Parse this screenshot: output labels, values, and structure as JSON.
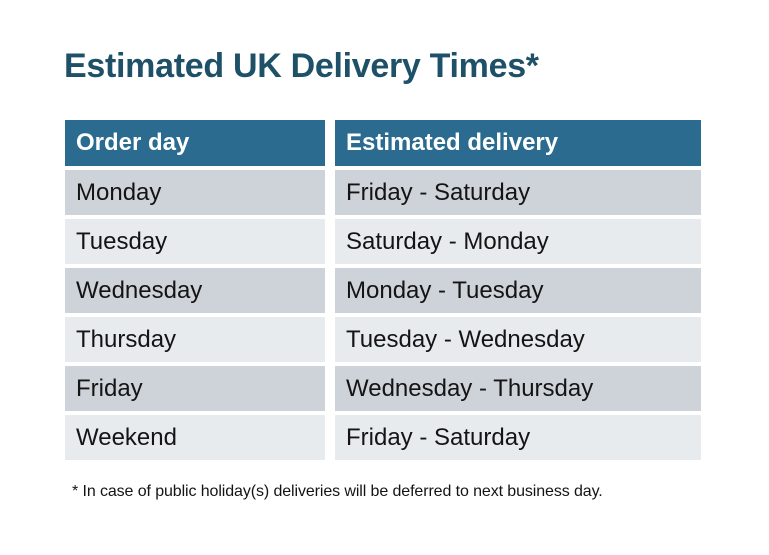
{
  "page": {
    "title": "Estimated UK Delivery Times*",
    "footnote": "* In case of public holiday(s) deliveries will be deferred to next business day."
  },
  "table": {
    "columns": [
      "Order day",
      "Estimated delivery"
    ],
    "rows": [
      {
        "order_day": "Monday",
        "estimated_delivery": "Friday - Saturday"
      },
      {
        "order_day": "Tuesday",
        "estimated_delivery": "Saturday - Monday"
      },
      {
        "order_day": "Wednesday",
        "estimated_delivery": "Monday - Tuesday"
      },
      {
        "order_day": "Thursday",
        "estimated_delivery": "Tuesday - Wednesday"
      },
      {
        "order_day": "Friday",
        "estimated_delivery": "Wednesday - Thursday"
      },
      {
        "order_day": "Weekend",
        "estimated_delivery": "Friday - Saturday"
      }
    ]
  },
  "colors": {
    "background": "#FFFFFF",
    "title": "#1E5168",
    "header_bg": "#2A6B8F",
    "header_text": "#FFFFFF",
    "row_odd_bg": "#CED2D9",
    "row_even_bg": "#E8EBEE",
    "body_text": "#141414"
  }
}
